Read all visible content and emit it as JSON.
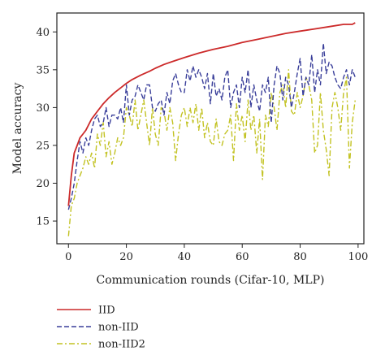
{
  "chart_data": {
    "type": "line",
    "xlabel": "Communication rounds (Cifar-10, MLP)",
    "ylabel": "Model accuracy",
    "xlim": [
      -4,
      102
    ],
    "ylim": [
      12,
      42.5
    ],
    "xticks": [
      0,
      20,
      40,
      60,
      80,
      100
    ],
    "yticks": [
      15,
      20,
      25,
      30,
      35,
      40
    ],
    "xtick_labels": [
      "0",
      "20",
      "40",
      "60",
      "80",
      "100"
    ],
    "ytick_labels": [
      "15",
      "20",
      "25",
      "30",
      "35",
      "40"
    ],
    "grid": false,
    "legend_position": "below-left",
    "series": [
      {
        "name": "IID",
        "color": "#cc2a2a",
        "style": "solid",
        "x": [
          0,
          1,
          2,
          3,
          4,
          5,
          6,
          8,
          10,
          12,
          14,
          16,
          18,
          20,
          22,
          25,
          28,
          30,
          33,
          36,
          40,
          45,
          50,
          55,
          60,
          65,
          70,
          75,
          80,
          85,
          90,
          95,
          98,
          99
        ],
        "values": [
          17,
          21,
          24,
          25,
          26,
          26.5,
          27,
          28.5,
          29.5,
          30.5,
          31.3,
          32,
          32.6,
          33.2,
          33.7,
          34.3,
          34.8,
          35.2,
          35.7,
          36.1,
          36.6,
          37.2,
          37.7,
          38.1,
          38.6,
          39,
          39.4,
          39.8,
          40.1,
          40.4,
          40.7,
          41,
          41,
          41.2
        ]
      },
      {
        "name": "non-IID",
        "color": "#3a3f9a",
        "style": "dashed",
        "x": [
          0,
          1,
          2,
          3,
          4,
          5,
          6,
          7,
          8,
          9,
          10,
          11,
          12,
          13,
          14,
          15,
          16,
          17,
          18,
          19,
          20,
          21,
          22,
          23,
          24,
          25,
          26,
          27,
          28,
          29,
          30,
          31,
          32,
          33,
          34,
          35,
          36,
          37,
          38,
          39,
          40,
          41,
          42,
          43,
          44,
          45,
          46,
          47,
          48,
          49,
          50,
          51,
          52,
          53,
          54,
          55,
          56,
          57,
          58,
          59,
          60,
          61,
          62,
          63,
          64,
          65,
          66,
          67,
          68,
          69,
          70,
          71,
          72,
          73,
          74,
          75,
          76,
          77,
          78,
          79,
          80,
          81,
          82,
          83,
          84,
          85,
          86,
          87,
          88,
          89,
          90,
          91,
          92,
          93,
          94,
          95,
          96,
          97,
          98,
          99
        ],
        "values": [
          16.5,
          18,
          20,
          23,
          25.5,
          24,
          26,
          25,
          27,
          28.5,
          29,
          27.5,
          28,
          30,
          27.5,
          29,
          29,
          28.5,
          30,
          28,
          33,
          29,
          31,
          31.5,
          33,
          32,
          31,
          33,
          33,
          30,
          29.5,
          30.5,
          31,
          29,
          32,
          30.5,
          33.5,
          34.5,
          33,
          32,
          32,
          35,
          33.5,
          35.5,
          34,
          35,
          34,
          32.5,
          34.5,
          30.5,
          34.5,
          31.5,
          32.5,
          31,
          34,
          35,
          30,
          32,
          33,
          30,
          34,
          32,
          35,
          30,
          33,
          31,
          29.5,
          33,
          32,
          34,
          28,
          33,
          35.5,
          34.5,
          31,
          34,
          33,
          30,
          32,
          34.5,
          36.5,
          31.5,
          34,
          33,
          37,
          32,
          35,
          33,
          38.5,
          34.5,
          36,
          35.5,
          34,
          33,
          32.5,
          34,
          35,
          33,
          35,
          34
        ]
      },
      {
        "name": "non-IID2",
        "color": "#c2c221",
        "style": "dashdot",
        "x": [
          0,
          1,
          2,
          3,
          4,
          5,
          6,
          7,
          8,
          9,
          10,
          11,
          12,
          13,
          14,
          15,
          16,
          17,
          18,
          19,
          20,
          21,
          22,
          23,
          24,
          25,
          26,
          27,
          28,
          29,
          30,
          31,
          32,
          33,
          34,
          35,
          36,
          37,
          38,
          39,
          40,
          41,
          42,
          43,
          44,
          45,
          46,
          47,
          48,
          49,
          50,
          51,
          52,
          53,
          54,
          55,
          56,
          57,
          58,
          59,
          60,
          61,
          62,
          63,
          64,
          65,
          66,
          67,
          68,
          69,
          70,
          71,
          72,
          73,
          74,
          75,
          76,
          77,
          78,
          79,
          80,
          81,
          82,
          83,
          84,
          85,
          86,
          87,
          88,
          89,
          90,
          91,
          92,
          93,
          94,
          95,
          96,
          97,
          98,
          99
        ],
        "values": [
          13,
          17,
          18,
          20,
          21,
          22,
          23.5,
          22.5,
          24,
          22,
          26.5,
          25,
          28,
          23.5,
          25.5,
          22.5,
          24,
          26,
          25,
          26,
          30,
          29,
          27.5,
          31,
          27,
          29,
          31,
          28,
          25,
          30,
          26.5,
          25,
          30,
          29.5,
          27,
          30,
          28,
          23,
          26.5,
          29,
          30,
          27.5,
          30,
          28,
          30.5,
          27,
          30,
          26,
          28,
          25.5,
          25,
          28.5,
          25.5,
          25,
          26.5,
          27,
          29,
          23,
          30.5,
          27,
          29,
          25.5,
          31,
          27,
          29,
          24,
          28.5,
          20.5,
          29,
          27.5,
          32,
          30,
          27,
          32,
          33,
          30,
          35,
          29.5,
          29,
          32,
          30,
          31.5,
          34,
          33,
          31,
          24,
          25,
          32,
          27,
          24.5,
          21,
          30,
          32,
          30,
          27,
          32,
          34,
          22,
          28,
          31
        ]
      }
    ]
  }
}
